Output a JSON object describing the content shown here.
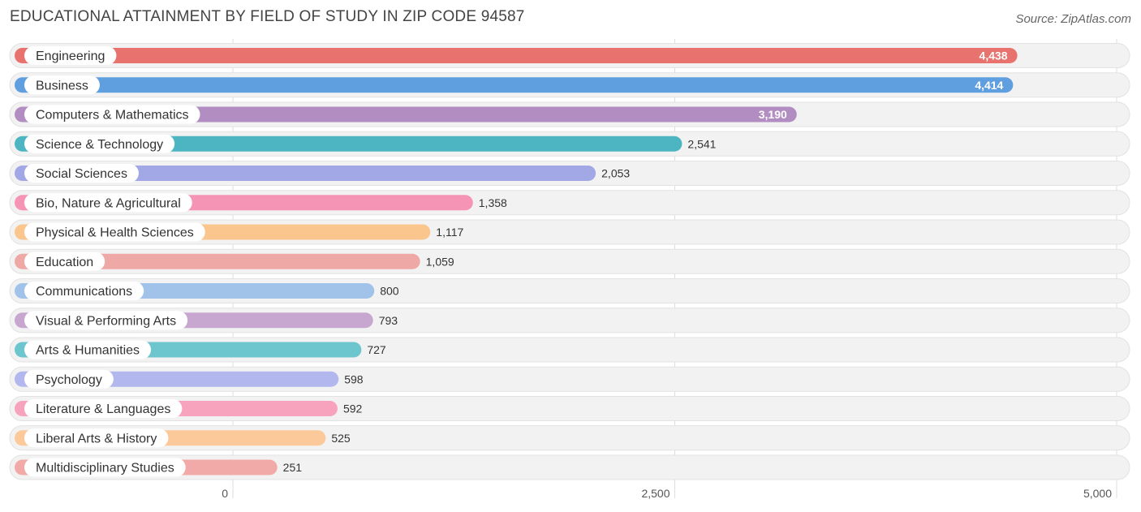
{
  "header": {
    "title": "EDUCATIONAL ATTAINMENT BY FIELD OF STUDY IN ZIP CODE 94587",
    "source": "Source: ZipAtlas.com"
  },
  "chart_data": {
    "type": "bar",
    "orientation": "horizontal",
    "title": "EDUCATIONAL ATTAINMENT BY FIELD OF STUDY IN ZIP CODE 94587",
    "xlim": [
      0,
      5000
    ],
    "xticks": [
      0,
      2500,
      5000
    ],
    "xtick_labels": [
      "0",
      "2,500",
      "5,000"
    ],
    "grid": true,
    "categories": [
      "Engineering",
      "Business",
      "Computers & Mathematics",
      "Science & Technology",
      "Social Sciences",
      "Bio, Nature & Agricultural",
      "Physical & Health Sciences",
      "Education",
      "Communications",
      "Visual & Performing Arts",
      "Arts & Humanities",
      "Psychology",
      "Literature & Languages",
      "Liberal Arts & History",
      "Multidisciplinary Studies"
    ],
    "values": [
      4438,
      4414,
      3190,
      2541,
      2053,
      1358,
      1117,
      1059,
      800,
      793,
      727,
      598,
      592,
      525,
      251
    ],
    "value_labels": [
      "4,438",
      "4,414",
      "3,190",
      "2,541",
      "2,053",
      "1,358",
      "1,117",
      "1,059",
      "800",
      "793",
      "727",
      "598",
      "592",
      "525",
      "251"
    ],
    "colors": [
      "#e8726d",
      "#5f9fdf",
      "#b28dc1",
      "#4db5c1",
      "#a2a8e6",
      "#f594b4",
      "#fbc58e",
      "#eea8a6",
      "#a1c3ea",
      "#c7a7cf",
      "#6dc5cd",
      "#b2b7ed",
      "#f7a3bd",
      "#fcc99a",
      "#f1aaa8"
    ]
  }
}
